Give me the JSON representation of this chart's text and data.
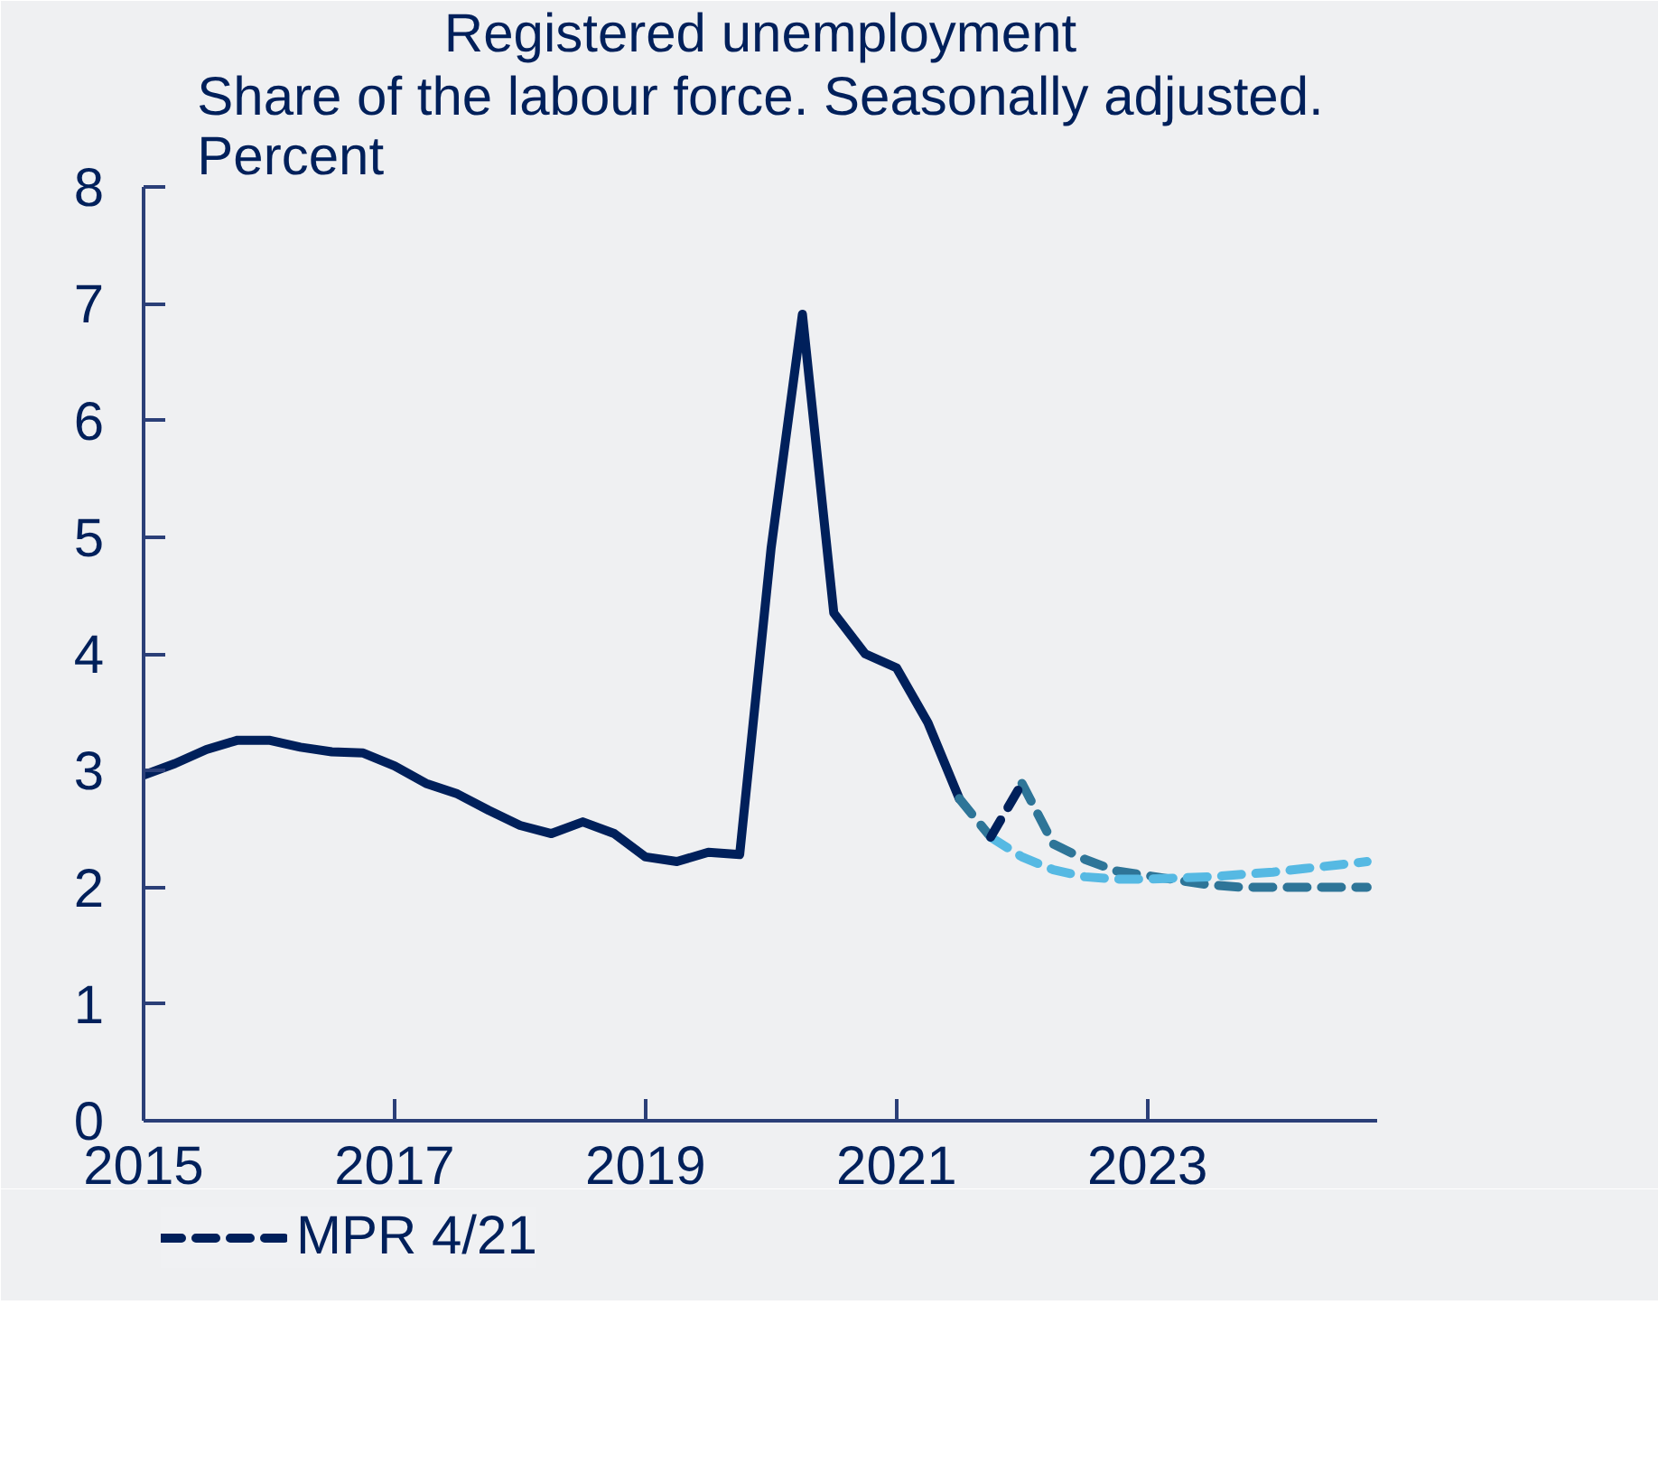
{
  "chart_data": {
    "type": "line",
    "title": "Registered unemployment",
    "subtitle": "Share of the labour force. Seasonally adjusted. Percent",
    "xlim": [
      2015,
      2024.83
    ],
    "xticks": [
      2015,
      2017,
      2019,
      2021,
      2023
    ],
    "ylim": [
      0,
      8
    ],
    "yticks": [
      0,
      1,
      2,
      3,
      4,
      5,
      6,
      7,
      8
    ],
    "grid": false,
    "legend": "bottom left",
    "series": [
      {
        "color": "#00205b",
        "line_style": "solid",
        "x": [
          2015,
          2015.25,
          2015.5,
          2015.75,
          2016,
          2016.25,
          2016.5,
          2016.75,
          2017,
          2017.25,
          2017.5,
          2017.75,
          2018,
          2018.25,
          2018.5,
          2018.75,
          2019,
          2019.25,
          2019.5,
          2019.75,
          2020,
          2020.25,
          2020.5,
          2020.75,
          2021,
          2021.25,
          2021.5
        ],
        "values": [
          2.96,
          3.06,
          3.18,
          3.26,
          3.26,
          3.2,
          3.16,
          3.15,
          3.04,
          2.89,
          2.8,
          2.66,
          2.53,
          2.46,
          2.56,
          2.46,
          2.26,
          2.22,
          2.3,
          2.28,
          4.9,
          6.91,
          4.35,
          4.0,
          3.88,
          3.41,
          2.76
        ]
      },
      {
        "color": "#2e7598",
        "line_style": "dashed",
        "x": [
          2021.5,
          2021.75
        ],
        "values": [
          2.76,
          2.43
        ]
      },
      {
        "color": "#2e7598",
        "line_style": "dashed",
        "x": [
          2022,
          2022.25,
          2022.5,
          2022.75,
          2023,
          2023.25,
          2023.5,
          2023.75,
          2024,
          2024.25,
          2024.5,
          2024.75
        ],
        "values": [
          2.89,
          2.37,
          2.24,
          2.14,
          2.1,
          2.06,
          2.02,
          2.0,
          2.0,
          2.0,
          2.0,
          2.0
        ]
      },
      {
        "color": "#56b9e3",
        "line_style": "dashed",
        "x": [
          2021.75,
          2022,
          2022.25,
          2022.5,
          2022.75,
          2023,
          2023.25,
          2023.5,
          2023.75,
          2024,
          2024.25,
          2024.5,
          2024.75
        ],
        "values": [
          2.43,
          2.26,
          2.15,
          2.09,
          2.07,
          2.07,
          2.08,
          2.09,
          2.11,
          2.13,
          2.16,
          2.19,
          2.22
        ]
      },
      {
        "name": "MPR 4/21",
        "color": "#00205b",
        "line_style": "dashed",
        "x": [
          2021.75,
          2022
        ],
        "values": [
          2.43,
          2.89
        ]
      }
    ]
  }
}
